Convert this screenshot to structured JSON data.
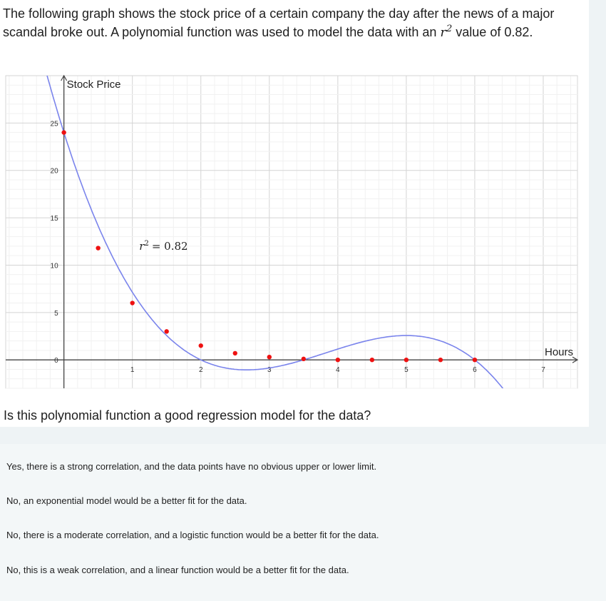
{
  "question": {
    "text_before": "The following graph shows the stock price of a certain company the day after the news of a major scandal broke out. A polynomial function was used to model the data with an ",
    "r_symbol": "r",
    "r_exp": "2",
    "text_after": " value of 0.82.",
    "prompt": "Is this polynomial function a good regression model for the data?"
  },
  "choices": [
    {
      "label": "Yes, there is a strong correlation, and the data points have no obvious upper or lower limit."
    },
    {
      "label": "No, an exponential model would be a better fit for the data."
    },
    {
      "label": "No, there is a moderate correlation, and a logistic function would be a better fit for the data."
    },
    {
      "label": "No, this is a weak correlation, and a linear function would be a better fit for the data."
    }
  ],
  "chart_data": {
    "type": "scatter",
    "xlabel": "Hours",
    "ylabel": "Stock Price",
    "annotation": {
      "symbol": "r",
      "exp": "2",
      "value": "= 0.82"
    },
    "xlim": [
      -0.85,
      7.5
    ],
    "ylim": [
      -3,
      30
    ],
    "x_ticks": [
      1,
      2,
      3,
      4,
      5,
      6,
      7
    ],
    "y_ticks": [
      0,
      5,
      10,
      15,
      20,
      25
    ],
    "points": [
      {
        "x": 0,
        "y": 24.0
      },
      {
        "x": 0.5,
        "y": 11.8
      },
      {
        "x": 1.0,
        "y": 6.0
      },
      {
        "x": 1.5,
        "y": 3.0
      },
      {
        "x": 2.0,
        "y": 1.5
      },
      {
        "x": 2.5,
        "y": 0.7
      },
      {
        "x": 3.0,
        "y": 0.3
      },
      {
        "x": 3.5,
        "y": 0.1
      },
      {
        "x": 4.0,
        "y": 0
      },
      {
        "x": 4.5,
        "y": 0
      },
      {
        "x": 5.0,
        "y": 0
      },
      {
        "x": 5.5,
        "y": 0
      },
      {
        "x": 6.0,
        "y": 0
      }
    ],
    "curve_roots": [
      2.0,
      3.5,
      6.0
    ],
    "curve_intercept": 24.0,
    "grid": true,
    "colors": {
      "points": "#ee1111",
      "curve": "#7a84ec",
      "axis": "#444444",
      "grid": "#e4e4e4"
    }
  }
}
